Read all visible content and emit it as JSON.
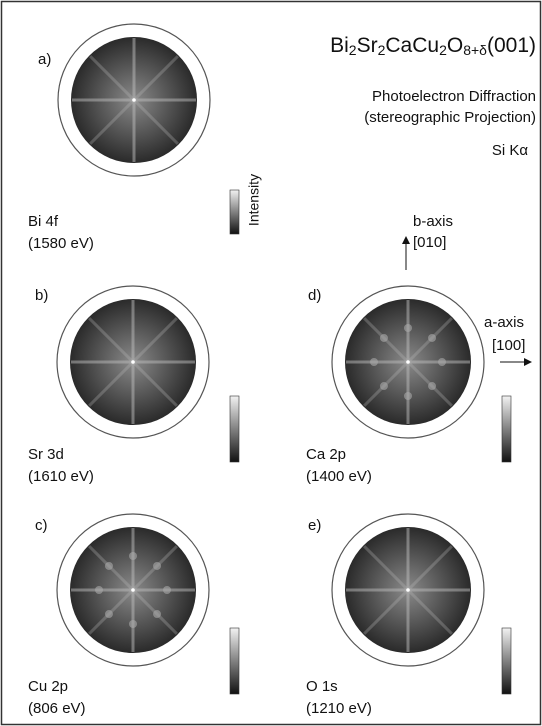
{
  "title": {
    "parts": [
      "Bi",
      "2",
      "Sr",
      "2",
      "CaCu",
      "2",
      "O",
      "8+δ",
      "(001)"
    ]
  },
  "subtitle": [
    "Photoelectron Diffraction",
    "(stereographic Projection)"
  ],
  "source": "Si Kα",
  "colorbar_label": "Intensity",
  "axes": {
    "b": {
      "name": "b-axis",
      "index": "[010]"
    },
    "a": {
      "name": "a-axis",
      "index": "[100]"
    }
  },
  "panels": [
    {
      "label": "a)",
      "line": "Bi 4f",
      "energy": "(1580 eV)"
    },
    {
      "label": "b)",
      "line": "Sr 3d",
      "energy": "(1610 eV)"
    },
    {
      "label": "c)",
      "line": "Cu 2p",
      "energy": "(806 eV)"
    },
    {
      "label": "d)",
      "line": "Ca 2p",
      "energy": "(1400 eV)"
    },
    {
      "label": "e)",
      "line": "O 1s",
      "energy": "(1210 eV)"
    }
  ]
}
